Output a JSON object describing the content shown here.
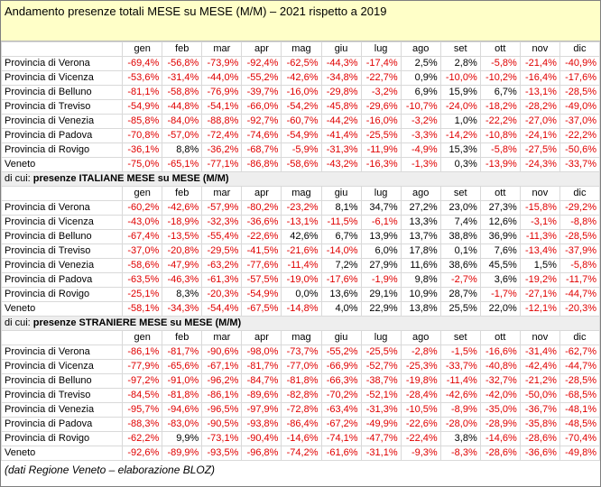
{
  "title": "Andamento presenze totali MESE su MESE (M/M) – 2021 rispetto a 2019",
  "months": [
    "gen",
    "feb",
    "mar",
    "apr",
    "mag",
    "giu",
    "lug",
    "ago",
    "set",
    "ott",
    "nov",
    "dic"
  ],
  "sections": [
    {
      "heading_prefix": "",
      "heading_bold": "",
      "rows": [
        {
          "label": "Provincia di Verona",
          "values": [
            "-69,4%",
            "-56,8%",
            "-73,9%",
            "-92,4%",
            "-62,5%",
            "-44,3%",
            "-17,4%",
            "2,5%",
            "2,8%",
            "-5,8%",
            "-21,4%",
            "-40,9%"
          ]
        },
        {
          "label": "Provincia di Vicenza",
          "values": [
            "-53,6%",
            "-31,4%",
            "-44,0%",
            "-55,2%",
            "-42,6%",
            "-34,8%",
            "-22,7%",
            "0,9%",
            "-10,0%",
            "-10,2%",
            "-16,4%",
            "-17,6%"
          ]
        },
        {
          "label": "Provincia di Belluno",
          "values": [
            "-81,1%",
            "-58,8%",
            "-76,9%",
            "-39,7%",
            "-16,0%",
            "-29,8%",
            "-3,2%",
            "6,9%",
            "15,9%",
            "6,7%",
            "-13,1%",
            "-28,5%"
          ]
        },
        {
          "label": "Provincia di Treviso",
          "values": [
            "-54,9%",
            "-44,8%",
            "-54,1%",
            "-66,0%",
            "-54,2%",
            "-45,8%",
            "-29,6%",
            "-10,7%",
            "-24,0%",
            "-18,2%",
            "-28,2%",
            "-49,0%"
          ]
        },
        {
          "label": "Provincia di Venezia",
          "values": [
            "-85,8%",
            "-84,0%",
            "-88,8%",
            "-92,7%",
            "-60,7%",
            "-44,2%",
            "-16,0%",
            "-3,2%",
            "1,0%",
            "-22,2%",
            "-27,0%",
            "-37,0%"
          ]
        },
        {
          "label": "Provincia di Padova",
          "values": [
            "-70,8%",
            "-57,0%",
            "-72,4%",
            "-74,6%",
            "-54,9%",
            "-41,4%",
            "-25,5%",
            "-3,3%",
            "-14,2%",
            "-10,8%",
            "-24,1%",
            "-22,2%"
          ]
        },
        {
          "label": "Provincia di Rovigo",
          "values": [
            "-36,1%",
            "8,8%",
            "-36,2%",
            "-68,7%",
            "-5,9%",
            "-31,3%",
            "-11,9%",
            "-4,9%",
            "15,3%",
            "-5,8%",
            "-27,5%",
            "-50,6%"
          ]
        },
        {
          "label": "Veneto",
          "values": [
            "-75,0%",
            "-65,1%",
            "-77,1%",
            "-86,8%",
            "-58,6%",
            "-43,2%",
            "-16,3%",
            "-1,3%",
            "0,3%",
            "-13,9%",
            "-24,3%",
            "-33,7%"
          ]
        }
      ]
    },
    {
      "heading_prefix": "di cui: ",
      "heading_bold": "presenze ITALIANE MESE su MESE (M/M)",
      "rows": [
        {
          "label": "Provincia di Verona",
          "values": [
            "-60,2%",
            "-42,6%",
            "-57,9%",
            "-80,2%",
            "-23,2%",
            "8,1%",
            "34,7%",
            "27,2%",
            "23,0%",
            "27,3%",
            "-15,8%",
            "-29,2%"
          ]
        },
        {
          "label": "Provincia di Vicenza",
          "values": [
            "-43,0%",
            "-18,9%",
            "-32,3%",
            "-36,6%",
            "-13,1%",
            "-11,5%",
            "-6,1%",
            "13,3%",
            "7,4%",
            "12,6%",
            "-3,1%",
            "-8,8%"
          ]
        },
        {
          "label": "Provincia di Belluno",
          "values": [
            "-67,4%",
            "-13,5%",
            "-55,4%",
            "-22,6%",
            "42,6%",
            "6,7%",
            "13,9%",
            "13,7%",
            "38,8%",
            "36,9%",
            "-11,3%",
            "-28,5%"
          ]
        },
        {
          "label": "Provincia di Treviso",
          "values": [
            "-37,0%",
            "-20,8%",
            "-29,5%",
            "-41,5%",
            "-21,6%",
            "-14,0%",
            "6,0%",
            "17,8%",
            "0,1%",
            "7,6%",
            "-13,4%",
            "-37,9%"
          ]
        },
        {
          "label": "Provincia di Venezia",
          "values": [
            "-58,6%",
            "-47,9%",
            "-63,2%",
            "-77,6%",
            "-11,4%",
            "7,2%",
            "27,9%",
            "11,6%",
            "38,6%",
            "45,5%",
            "1,5%",
            "-5,8%"
          ]
        },
        {
          "label": "Provincia di Padova",
          "values": [
            "-63,5%",
            "-46,3%",
            "-61,3%",
            "-57,5%",
            "-19,0%",
            "-17,6%",
            "-1,9%",
            "9,8%",
            "-2,7%",
            "3,6%",
            "-19,2%",
            "-11,7%"
          ]
        },
        {
          "label": "Provincia di Rovigo",
          "values": [
            "-25,1%",
            "8,3%",
            "-20,3%",
            "-54,9%",
            "0,0%",
            "13,6%",
            "29,1%",
            "10,9%",
            "28,7%",
            "-1,7%",
            "-27,1%",
            "-44,7%"
          ]
        },
        {
          "label": "Veneto",
          "values": [
            "-58,1%",
            "-34,3%",
            "-54,4%",
            "-67,5%",
            "-14,8%",
            "4,0%",
            "22,9%",
            "13,8%",
            "25,5%",
            "22,0%",
            "-12,1%",
            "-20,3%"
          ]
        }
      ]
    },
    {
      "heading_prefix": "di cui: ",
      "heading_bold": "presenze STRANIERE MESE su MESE (M/M)",
      "rows": [
        {
          "label": "Provincia di Verona",
          "values": [
            "-86,1%",
            "-81,7%",
            "-90,6%",
            "-98,0%",
            "-73,7%",
            "-55,2%",
            "-25,5%",
            "-2,8%",
            "-1,5%",
            "-16,6%",
            "-31,4%",
            "-62,7%"
          ]
        },
        {
          "label": "Provincia di Vicenza",
          "values": [
            "-77,9%",
            "-65,6%",
            "-67,1%",
            "-81,7%",
            "-77,0%",
            "-66,9%",
            "-52,7%",
            "-25,3%",
            "-33,7%",
            "-40,8%",
            "-42,4%",
            "-44,7%"
          ]
        },
        {
          "label": "Provincia di Belluno",
          "values": [
            "-97,2%",
            "-91,0%",
            "-96,2%",
            "-84,7%",
            "-81,8%",
            "-66,3%",
            "-38,7%",
            "-19,8%",
            "-11,4%",
            "-32,7%",
            "-21,2%",
            "-28,5%"
          ]
        },
        {
          "label": "Provincia di Treviso",
          "values": [
            "-84,5%",
            "-81,8%",
            "-86,1%",
            "-89,6%",
            "-82,8%",
            "-70,2%",
            "-52,1%",
            "-28,4%",
            "-42,6%",
            "-42,0%",
            "-50,0%",
            "-68,5%"
          ]
        },
        {
          "label": "Provincia di Venezia",
          "values": [
            "-95,7%",
            "-94,6%",
            "-96,5%",
            "-97,9%",
            "-72,8%",
            "-63,4%",
            "-31,3%",
            "-10,5%",
            "-8,9%",
            "-35,0%",
            "-36,7%",
            "-48,1%"
          ]
        },
        {
          "label": "Provincia di Padova",
          "values": [
            "-88,3%",
            "-83,0%",
            "-90,5%",
            "-93,8%",
            "-86,4%",
            "-67,2%",
            "-49,9%",
            "-22,6%",
            "-28,0%",
            "-28,9%",
            "-35,8%",
            "-48,5%"
          ]
        },
        {
          "label": "Provincia di Rovigo",
          "values": [
            "-62,2%",
            "9,9%",
            "-73,1%",
            "-90,4%",
            "-14,6%",
            "-74,1%",
            "-47,7%",
            "-22,4%",
            "3,8%",
            "-14,6%",
            "-28,6%",
            "-70,4%"
          ]
        },
        {
          "label": "Veneto",
          "values": [
            "-92,6%",
            "-89,9%",
            "-93,5%",
            "-96,8%",
            "-74,2%",
            "-61,6%",
            "-31,1%",
            "-9,3%",
            "-8,3%",
            "-28,6%",
            "-36,6%",
            "-49,8%"
          ]
        }
      ]
    }
  ],
  "footer": "(dati Regione Veneto – elaborazione BLOZ)",
  "colors": {
    "negative": "#e00000",
    "positive": "#000000",
    "title_bg": "#ffffc8",
    "section_bg": "#eeeeee",
    "grid": "#d9d9d9"
  }
}
